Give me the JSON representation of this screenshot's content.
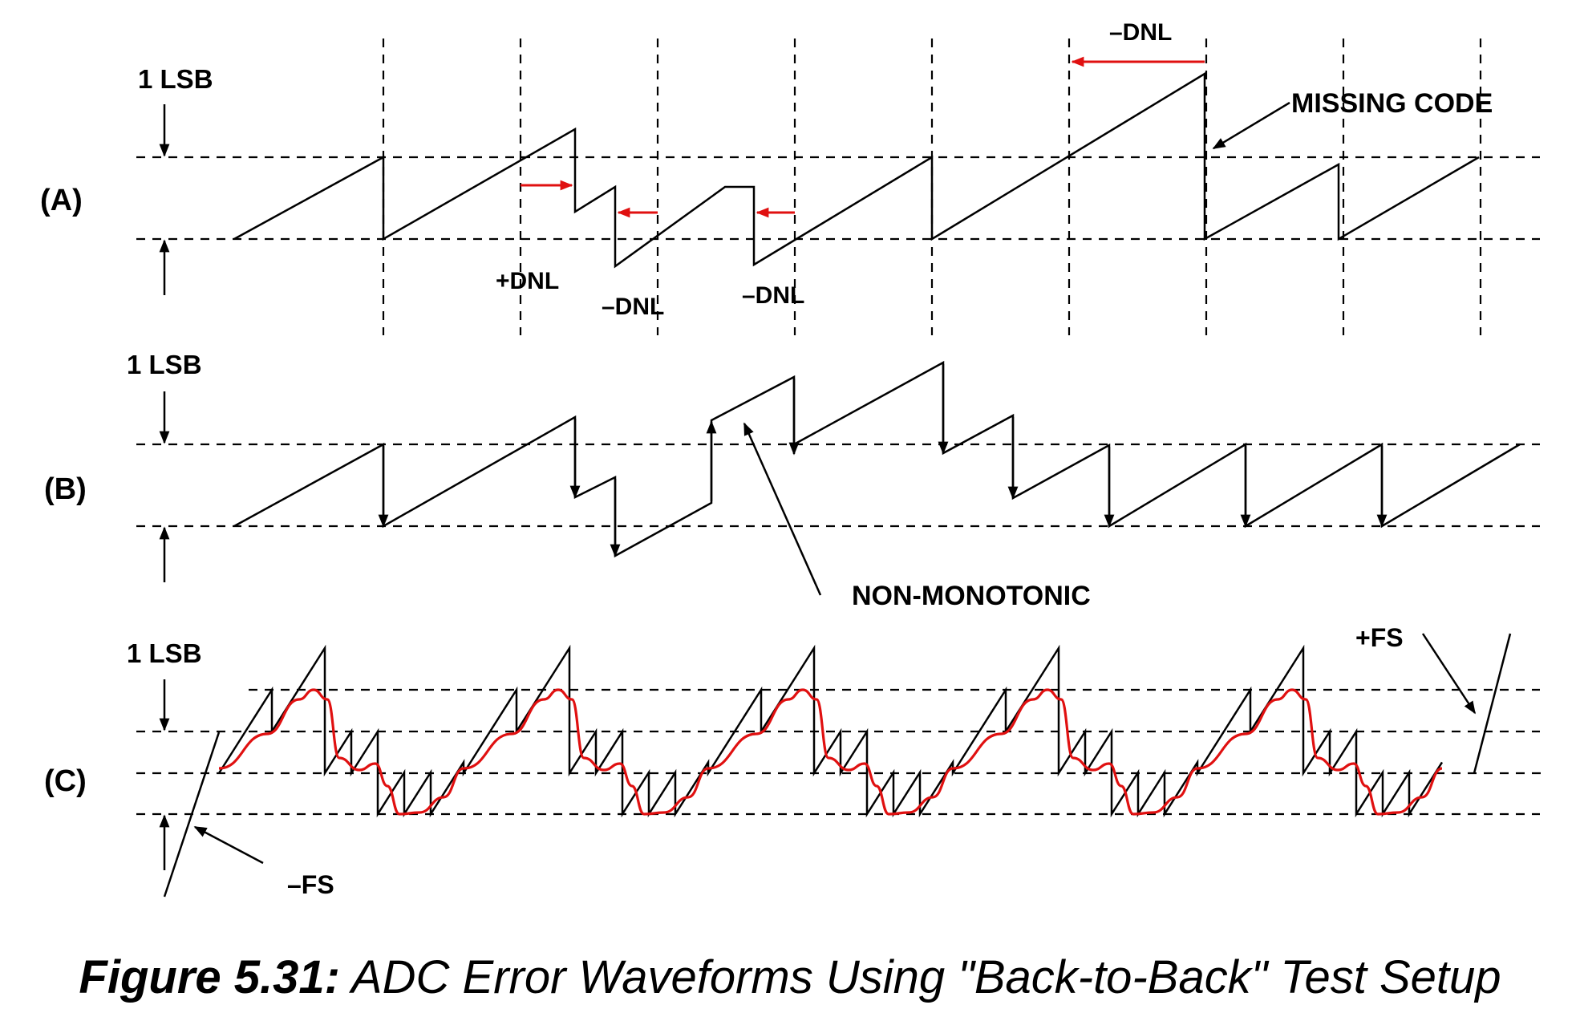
{
  "panels": {
    "a": {
      "label": "(A)",
      "lsb": "1 LSB"
    },
    "b": {
      "label": "(B)",
      "lsb": "1 LSB"
    },
    "c": {
      "label": "(C)",
      "lsb": "1 LSB"
    }
  },
  "annotations": {
    "plus_dnl": "+DNL",
    "minus_dnl_1": "–DNL",
    "minus_dnl_2": "–DNL",
    "minus_dnl_top": "–DNL",
    "missing_code": "MISSING CODE",
    "non_monotonic": "NON-MONOTONIC",
    "plus_fs": "+FS",
    "minus_fs": "–FS"
  },
  "caption": {
    "prefix": "Figure 5.31:",
    "text": " ADC Error Waveforms Using \"Back-to-Back\" Test Setup"
  },
  "colors": {
    "line": "#000000",
    "highlight": "#e01010",
    "background": "#ffffff"
  }
}
